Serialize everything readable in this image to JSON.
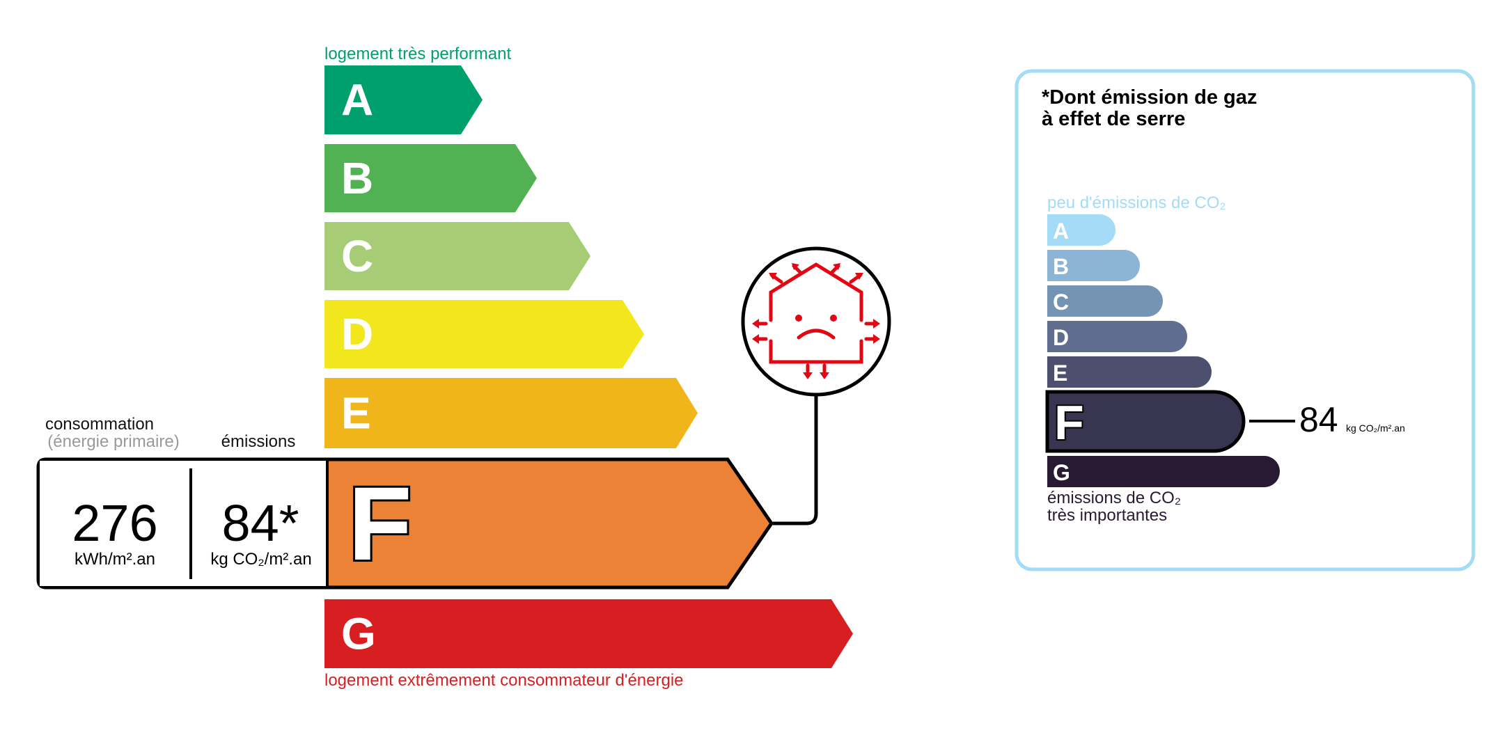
{
  "energy": {
    "top_label": "logement très performant",
    "bottom_label": "logement extrêmement consommateur d'énergie",
    "classes": [
      {
        "letter": "A",
        "color": "#00a06d"
      },
      {
        "letter": "B",
        "color": "#52b153"
      },
      {
        "letter": "C",
        "color": "#a6cd75"
      },
      {
        "letter": "D",
        "color": "#f2e61d"
      },
      {
        "letter": "E",
        "color": "#f0b51b"
      },
      {
        "letter": "F",
        "color": "#eb8235"
      },
      {
        "letter": "G",
        "color": "#d71f22"
      }
    ],
    "current_class": "F",
    "consumption_label": "consommation",
    "consumption_sub": "(énergie primaire)",
    "consumption_value": "276",
    "consumption_unit": "kWh/m².an",
    "emissions_label": "émissions",
    "emissions_value": "84*",
    "emissions_unit": "kg CO₂/m².an",
    "icon": "sad-house-heat-loss-icon",
    "icon_color": "#e30613"
  },
  "ges": {
    "title_line1": "*Dont émission de gaz",
    "title_line2": "à effet de serre",
    "top_label": "peu d'émissions de CO₂",
    "bottom_label_line1": "émissions de CO₂",
    "bottom_label_line2": "très importantes",
    "border_color": "#a4dbf7",
    "classes": [
      {
        "letter": "A",
        "color": "#a4dbf7"
      },
      {
        "letter": "B",
        "color": "#8cb4d4"
      },
      {
        "letter": "C",
        "color": "#7594b4"
      },
      {
        "letter": "D",
        "color": "#5f6e8f"
      },
      {
        "letter": "E",
        "color": "#4c4f6e"
      },
      {
        "letter": "F",
        "color": "#383551"
      },
      {
        "letter": "G",
        "color": "#281a33"
      }
    ],
    "current_class": "F",
    "value": "84",
    "unit": "kg CO₂/m².an"
  }
}
